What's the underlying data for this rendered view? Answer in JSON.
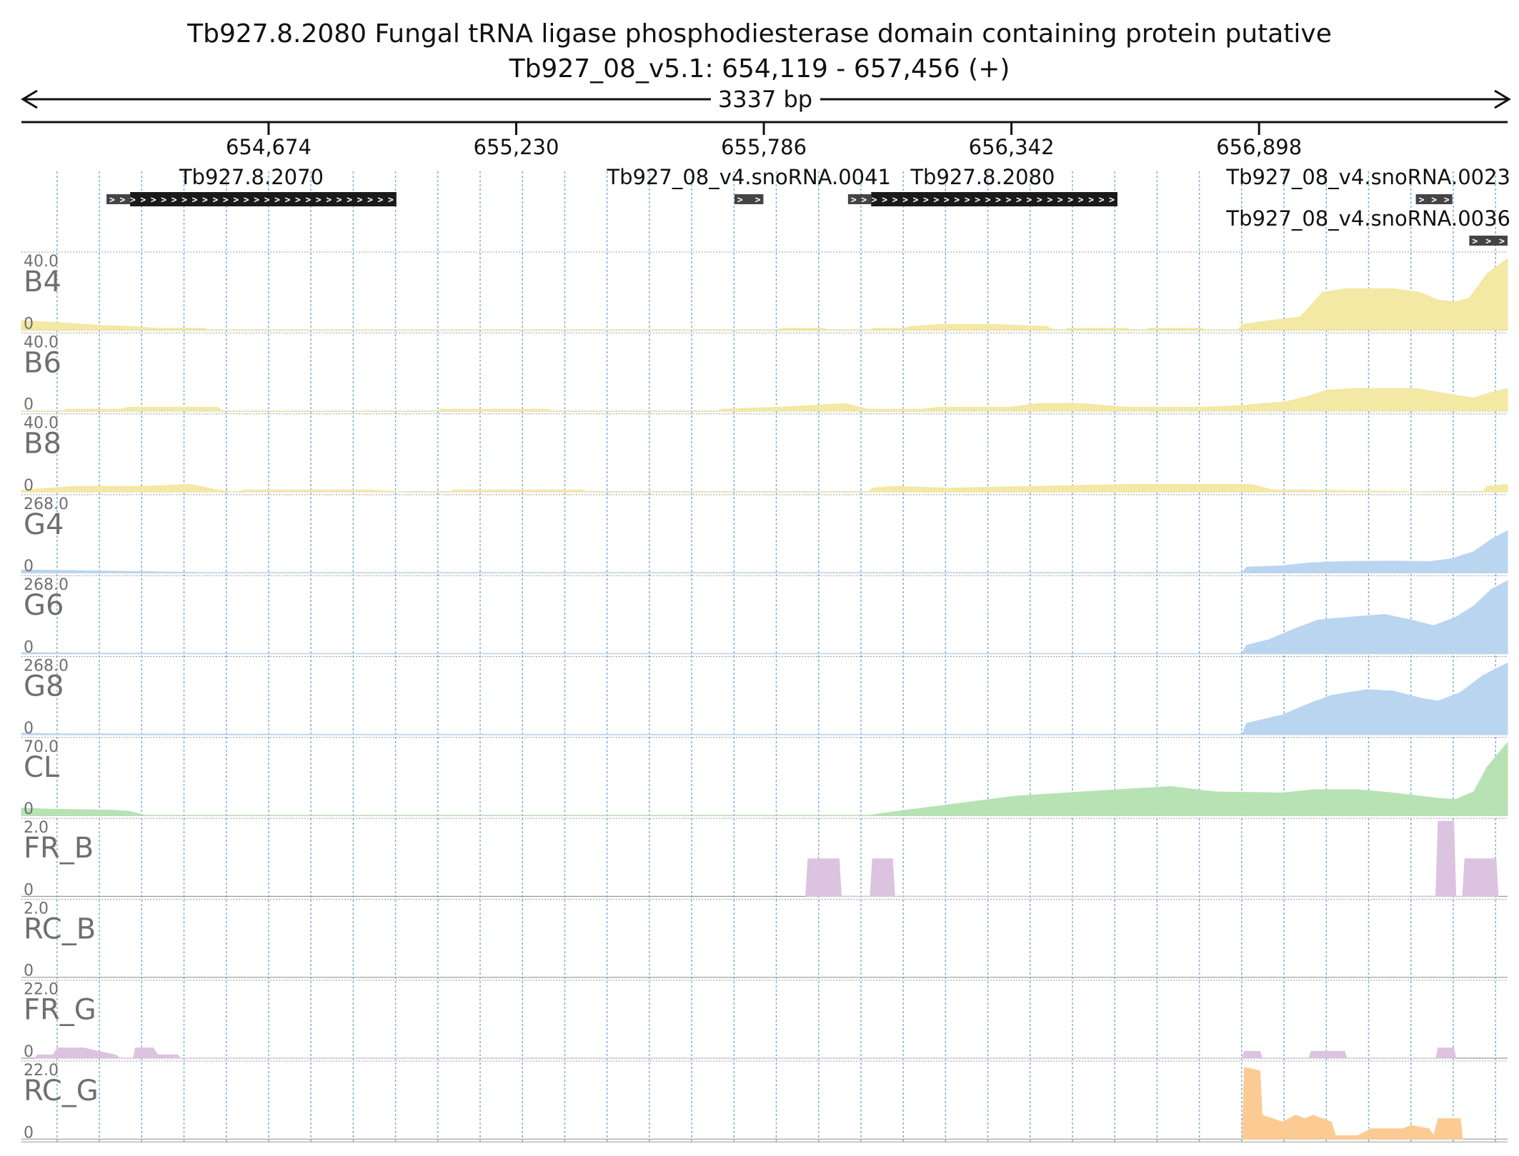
{
  "header": {
    "title_line1": "Tb927.8.2080  Fungal tRNA ligase phosphodiesterase domain containing protein  putative",
    "title_line2": "Tb927_08_v5.1: 654,119 - 657,456 (+)",
    "span_label": "3337 bp"
  },
  "locus": {
    "start": 654119,
    "end": 657456
  },
  "ruler": {
    "ticks": [
      {
        "pos": 654674,
        "label": "654,674"
      },
      {
        "pos": 655230,
        "label": "655,230"
      },
      {
        "pos": 655786,
        "label": "655,786"
      },
      {
        "pos": 656342,
        "label": "656,342"
      },
      {
        "pos": 656898,
        "label": "656,898"
      }
    ],
    "minor_step": 95
  },
  "features": [
    {
      "name": "Tb927.8.2070",
      "start": 654310,
      "end": 654961,
      "thick_start": 654363,
      "label": "Tb927.8.2070",
      "row": 0
    },
    {
      "name": "Tb927_08_v4.snoRNA.0041",
      "start": 655720,
      "end": 655785,
      "thick_start": 655785,
      "label": "Tb927_08_v4.snoRNA.0041",
      "row": 0
    },
    {
      "name": "Tb927.8.2080",
      "start": 655975,
      "end": 656580,
      "thick_start": 656027,
      "label": "Tb927.8.2080",
      "row": 0
    },
    {
      "name": "Tb927_08_v4.snoRNA.0023",
      "start": 657250,
      "end": 657332,
      "thick_start": 657332,
      "label": "Tb927_08_v4.snoRNA.0023",
      "row": 0
    },
    {
      "name": "Tb927_08_v4.snoRNA.0036",
      "start": 657370,
      "end": 657456,
      "thick_start": 657456,
      "label": "Tb927_08_v4.snoRNA.0036",
      "row": 1
    }
  ],
  "colors": {
    "B": "#f3e8a4",
    "G": "#b9d5f0",
    "CL": "#b7e3b4",
    "FR": "#dcc3e0",
    "RC_G": "#fccb93",
    "feature": "#1a1a1a",
    "grid": "#7aaedc"
  },
  "chart_data": {
    "type": "area",
    "x_unit": "bp",
    "x_range": [
      654119,
      657456
    ],
    "tracks": [
      {
        "name": "B4",
        "max_label": "40.0",
        "min_label": "0",
        "max": 40,
        "color_key": "B",
        "points": [
          [
            654119,
            5
          ],
          [
            654200,
            4
          ],
          [
            654300,
            2.5
          ],
          [
            654360,
            2
          ],
          [
            654420,
            1
          ],
          [
            654530,
            1
          ],
          [
            654540,
            0
          ],
          [
            655810,
            0
          ],
          [
            655830,
            1
          ],
          [
            655920,
            1
          ],
          [
            655930,
            0
          ],
          [
            656025,
            0
          ],
          [
            656030,
            1
          ],
          [
            656100,
            1
          ],
          [
            656120,
            2
          ],
          [
            656180,
            3
          ],
          [
            656300,
            3
          ],
          [
            656420,
            2
          ],
          [
            656440,
            0
          ],
          [
            656460,
            0
          ],
          [
            656470,
            1
          ],
          [
            656600,
            1
          ],
          [
            656610,
            0
          ],
          [
            656645,
            0
          ],
          [
            656650,
            1
          ],
          [
            656770,
            1
          ],
          [
            656780,
            0
          ],
          [
            656850,
            0
          ],
          [
            656860,
            3
          ],
          [
            656920,
            5
          ],
          [
            656990,
            7
          ],
          [
            657010,
            12
          ],
          [
            657040,
            20
          ],
          [
            657090,
            22
          ],
          [
            657200,
            22
          ],
          [
            657260,
            20
          ],
          [
            657300,
            16
          ],
          [
            657340,
            15
          ],
          [
            657370,
            17
          ],
          [
            657410,
            30
          ],
          [
            657456,
            38
          ]
        ]
      },
      {
        "name": "B6",
        "max_label": "40.0",
        "min_label": "0",
        "max": 40,
        "color_key": "B",
        "points": [
          [
            654119,
            0
          ],
          [
            654210,
            0
          ],
          [
            654220,
            1
          ],
          [
            654340,
            1
          ],
          [
            654360,
            2
          ],
          [
            654560,
            2
          ],
          [
            654570,
            0
          ],
          [
            655050,
            0
          ],
          [
            655060,
            1
          ],
          [
            655300,
            1
          ],
          [
            655310,
            0
          ],
          [
            655680,
            0
          ],
          [
            655690,
            1
          ],
          [
            655820,
            2
          ],
          [
            655970,
            4
          ],
          [
            656020,
            1
          ],
          [
            656140,
            1
          ],
          [
            656180,
            2
          ],
          [
            656340,
            2
          ],
          [
            656400,
            4
          ],
          [
            656500,
            4
          ],
          [
            656600,
            2
          ],
          [
            656700,
            2
          ],
          [
            656780,
            2
          ],
          [
            656860,
            3
          ],
          [
            656960,
            5
          ],
          [
            657010,
            8
          ],
          [
            657050,
            11
          ],
          [
            657110,
            12
          ],
          [
            657250,
            12
          ],
          [
            657300,
            10
          ],
          [
            657350,
            8
          ],
          [
            657380,
            7
          ],
          [
            657420,
            10
          ],
          [
            657456,
            12
          ]
        ]
      },
      {
        "name": "B8",
        "max_label": "40.0",
        "min_label": "0",
        "max": 40,
        "color_key": "B",
        "points": [
          [
            654119,
            1
          ],
          [
            654180,
            2
          ],
          [
            654240,
            3
          ],
          [
            654400,
            3
          ],
          [
            654500,
            4
          ],
          [
            654560,
            1
          ],
          [
            654600,
            0
          ],
          [
            654620,
            1
          ],
          [
            654800,
            1
          ],
          [
            654900,
            1
          ],
          [
            654980,
            0
          ],
          [
            655080,
            0
          ],
          [
            655090,
            1
          ],
          [
            655380,
            1
          ],
          [
            655390,
            0
          ],
          [
            656020,
            0
          ],
          [
            656030,
            2
          ],
          [
            656080,
            3
          ],
          [
            656200,
            2
          ],
          [
            656400,
            3
          ],
          [
            656600,
            4
          ],
          [
            656780,
            4
          ],
          [
            656880,
            4
          ],
          [
            656930,
            1
          ],
          [
            657000,
            1
          ],
          [
            657300,
            0
          ],
          [
            657400,
            0
          ],
          [
            657410,
            3
          ],
          [
            657456,
            4
          ]
        ]
      },
      {
        "name": "G4",
        "max_label": "268.0",
        "min_label": "0",
        "max": 268,
        "color_key": "G",
        "points": [
          [
            654119,
            10
          ],
          [
            654250,
            8
          ],
          [
            654300,
            6
          ],
          [
            654400,
            4
          ],
          [
            654500,
            1
          ],
          [
            654600,
            0
          ],
          [
            656860,
            0
          ],
          [
            656870,
            20
          ],
          [
            656950,
            25
          ],
          [
            657010,
            35
          ],
          [
            657080,
            40
          ],
          [
            657200,
            42
          ],
          [
            657280,
            40
          ],
          [
            657330,
            50
          ],
          [
            657380,
            75
          ],
          [
            657420,
            120
          ],
          [
            657456,
            150
          ]
        ]
      },
      {
        "name": "G6",
        "max_label": "268.0",
        "min_label": "0",
        "max": 268,
        "color_key": "G",
        "points": [
          [
            654119,
            4
          ],
          [
            654300,
            2
          ],
          [
            654500,
            1
          ],
          [
            654700,
            0
          ],
          [
            656860,
            0
          ],
          [
            656870,
            30
          ],
          [
            656920,
            50
          ],
          [
            656980,
            90
          ],
          [
            657030,
            120
          ],
          [
            657100,
            130
          ],
          [
            657180,
            140
          ],
          [
            657240,
            120
          ],
          [
            657290,
            100
          ],
          [
            657340,
            130
          ],
          [
            657380,
            170
          ],
          [
            657420,
            230
          ],
          [
            657456,
            260
          ]
        ]
      },
      {
        "name": "G8",
        "max_label": "268.0",
        "min_label": "0",
        "max": 268,
        "color_key": "G",
        "points": [
          [
            654119,
            5
          ],
          [
            654200,
            3
          ],
          [
            654500,
            2
          ],
          [
            654800,
            1
          ],
          [
            655200,
            1
          ],
          [
            655800,
            1
          ],
          [
            656300,
            1
          ],
          [
            656860,
            1
          ],
          [
            656870,
            40
          ],
          [
            656950,
            70
          ],
          [
            657010,
            110
          ],
          [
            657060,
            140
          ],
          [
            657140,
            160
          ],
          [
            657200,
            155
          ],
          [
            657260,
            130
          ],
          [
            657300,
            120
          ],
          [
            657350,
            150
          ],
          [
            657400,
            210
          ],
          [
            657456,
            255
          ]
        ]
      },
      {
        "name": "CL",
        "max_label": "70.0",
        "min_label": "0",
        "max": 70,
        "color_key": "CL",
        "points": [
          [
            654119,
            7
          ],
          [
            654180,
            6
          ],
          [
            654320,
            5
          ],
          [
            654360,
            4
          ],
          [
            654400,
            0
          ],
          [
            656020,
            0
          ],
          [
            656050,
            2
          ],
          [
            656200,
            10
          ],
          [
            656350,
            18
          ],
          [
            656540,
            23
          ],
          [
            656700,
            27
          ],
          [
            656800,
            22
          ],
          [
            656950,
            21
          ],
          [
            657020,
            24
          ],
          [
            657120,
            24
          ],
          [
            657200,
            21
          ],
          [
            657300,
            16
          ],
          [
            657340,
            15
          ],
          [
            657380,
            22
          ],
          [
            657410,
            45
          ],
          [
            657456,
            68
          ]
        ]
      },
      {
        "name": "FR_B",
        "max_label": "2.0",
        "min_label": "0",
        "max": 2,
        "color_key": "FR",
        "points": [
          [
            655880,
            0
          ],
          [
            655885,
            1
          ],
          [
            655955,
            1
          ],
          [
            655960,
            0
          ],
          [
            656025,
            0
          ],
          [
            656030,
            1
          ],
          [
            656075,
            1
          ],
          [
            656080,
            0
          ],
          [
            657295,
            0
          ],
          [
            657300,
            2
          ],
          [
            657335,
            2
          ],
          [
            657340,
            0
          ],
          [
            657355,
            0
          ],
          [
            657360,
            1
          ],
          [
            657430,
            1
          ],
          [
            657435,
            0
          ]
        ]
      },
      {
        "name": "RC_B",
        "max_label": "2.0",
        "min_label": "0",
        "max": 2,
        "color_key": "FR",
        "points": []
      },
      {
        "name": "FR_G",
        "max_label": "22.0",
        "min_label": "0",
        "max": 22,
        "color_key": "FR",
        "points": [
          [
            654150,
            0
          ],
          [
            654155,
            1
          ],
          [
            654190,
            1
          ],
          [
            654200,
            3
          ],
          [
            654260,
            3
          ],
          [
            654290,
            2
          ],
          [
            654330,
            1
          ],
          [
            654340,
            0
          ],
          [
            654370,
            0
          ],
          [
            654375,
            3
          ],
          [
            654415,
            3
          ],
          [
            654425,
            1
          ],
          [
            654470,
            1
          ],
          [
            654475,
            0
          ],
          [
            656860,
            0
          ],
          [
            656865,
            2
          ],
          [
            656900,
            2
          ],
          [
            656905,
            0
          ],
          [
            657010,
            0
          ],
          [
            657015,
            2
          ],
          [
            657090,
            2
          ],
          [
            657095,
            0
          ],
          [
            657295,
            0
          ],
          [
            657300,
            3
          ],
          [
            657335,
            3
          ],
          [
            657340,
            0
          ]
        ]
      },
      {
        "name": "RC_G",
        "max_label": "22.0",
        "min_label": "0",
        "max": 22,
        "color_key": "RC_G",
        "points": [
          [
            656860,
            0
          ],
          [
            656865,
            21
          ],
          [
            656900,
            20
          ],
          [
            656905,
            7
          ],
          [
            656950,
            5
          ],
          [
            656980,
            7
          ],
          [
            657000,
            6
          ],
          [
            657020,
            7
          ],
          [
            657060,
            5
          ],
          [
            657070,
            1
          ],
          [
            657120,
            1
          ],
          [
            657150,
            3
          ],
          [
            657220,
            3
          ],
          [
            657240,
            4
          ],
          [
            657280,
            3
          ],
          [
            657290,
            1
          ],
          [
            657300,
            6
          ],
          [
            657350,
            6
          ],
          [
            657355,
            0
          ]
        ]
      }
    ]
  }
}
